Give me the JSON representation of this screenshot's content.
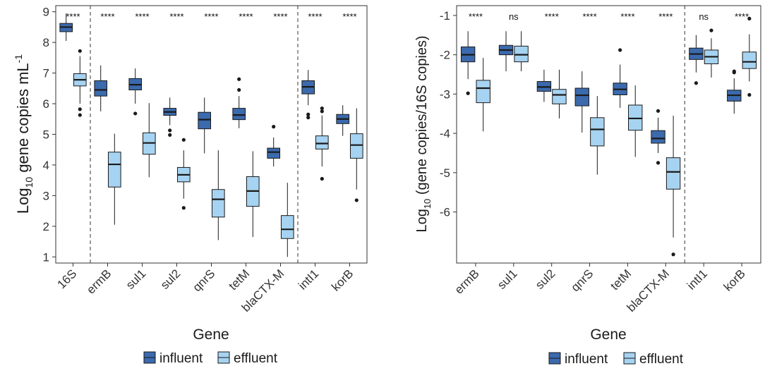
{
  "colors": {
    "influent": "#3b6aad",
    "effluent": "#a6d3f1",
    "stroke": "#1a1a1a"
  },
  "legend": {
    "items": [
      {
        "label": "influent",
        "color": "#3b6aad"
      },
      {
        "label": "effluent",
        "color": "#a6d3f1"
      }
    ]
  },
  "chart_data": [
    {
      "type": "box",
      "xlabel": "Gene",
      "ylabel_parts": [
        "Log",
        "10",
        " gene copies mL",
        "-1"
      ],
      "ylim": [
        0.8,
        9.2
      ],
      "yticks": [
        1,
        2,
        3,
        4,
        5,
        6,
        7,
        8,
        9
      ],
      "grid": false,
      "legend_position": "bottom",
      "separators_after": [
        0,
        6
      ],
      "categories": [
        "16S",
        "ermB",
        "sul1",
        "sul2",
        "qnrS",
        "tetM",
        "blaCTX-M",
        "intI1",
        "korB"
      ],
      "significance": [
        "****",
        "****",
        "****",
        "****",
        "****",
        "****",
        "****",
        "****",
        "****"
      ],
      "series": [
        {
          "name": "influent",
          "boxes": [
            {
              "min": 8.05,
              "q1": 8.35,
              "median": 8.5,
              "q3": 8.62,
              "max": 8.95,
              "outliers": []
            },
            {
              "min": 5.75,
              "q1": 6.25,
              "median": 6.45,
              "q3": 6.75,
              "max": 7.25,
              "outliers": []
            },
            {
              "min": 6.0,
              "q1": 6.45,
              "median": 6.62,
              "q3": 6.82,
              "max": 7.15,
              "outliers": [
                5.68
              ]
            },
            {
              "min": 5.3,
              "q1": 5.62,
              "median": 5.73,
              "q3": 5.85,
              "max": 6.2,
              "outliers": [
                5.13,
                4.98
              ]
            },
            {
              "min": 4.38,
              "q1": 5.18,
              "median": 5.48,
              "q3": 5.72,
              "max": 6.2,
              "outliers": []
            },
            {
              "min": 5.2,
              "q1": 5.48,
              "median": 5.63,
              "q3": 5.85,
              "max": 6.25,
              "outliers": [
                6.8,
                6.45
              ]
            },
            {
              "min": 3.95,
              "q1": 4.22,
              "median": 4.42,
              "q3": 4.55,
              "max": 4.9,
              "outliers": [
                5.25
              ]
            },
            {
              "min": 5.95,
              "q1": 6.32,
              "median": 6.55,
              "q3": 6.75,
              "max": 7.1,
              "outliers": [
                5.65,
                5.55
              ]
            },
            {
              "min": 4.95,
              "q1": 5.35,
              "median": 5.5,
              "q3": 5.65,
              "max": 5.95,
              "outliers": []
            }
          ]
        },
        {
          "name": "effluent",
          "boxes": [
            {
              "min": 6.0,
              "q1": 6.58,
              "median": 6.78,
              "q3": 6.98,
              "max": 7.55,
              "outliers": [
                7.72,
                5.82,
                5.63
              ]
            },
            {
              "min": 2.05,
              "q1": 3.28,
              "median": 4.02,
              "q3": 4.42,
              "max": 5.02,
              "outliers": []
            },
            {
              "min": 3.6,
              "q1": 4.35,
              "median": 4.72,
              "q3": 5.05,
              "max": 6.02,
              "outliers": []
            },
            {
              "min": 2.9,
              "q1": 3.45,
              "median": 3.68,
              "q3": 3.92,
              "max": 4.48,
              "outliers": [
                4.82,
                2.6
              ]
            },
            {
              "min": 1.55,
              "q1": 2.3,
              "median": 2.88,
              "q3": 3.2,
              "max": 4.48,
              "outliers": []
            },
            {
              "min": 1.65,
              "q1": 2.65,
              "median": 3.15,
              "q3": 3.62,
              "max": 4.45,
              "outliers": []
            },
            {
              "min": 1.0,
              "q1": 1.6,
              "median": 1.9,
              "q3": 2.35,
              "max": 3.42,
              "outliers": []
            },
            {
              "min": 3.95,
              "q1": 4.52,
              "median": 4.7,
              "q3": 4.95,
              "max": 5.62,
              "outliers": [
                5.85,
                5.75,
                3.55
              ]
            },
            {
              "min": 3.2,
              "q1": 4.22,
              "median": 4.65,
              "q3": 5.02,
              "max": 5.85,
              "outliers": [
                2.85
              ]
            }
          ]
        }
      ]
    },
    {
      "type": "box",
      "xlabel": "Gene",
      "ylabel_parts": [
        "Log",
        "10",
        " (gene copies/16S copies)",
        ""
      ],
      "ylim": [
        -7.3,
        -0.75
      ],
      "yticks": [
        -1,
        -2,
        -3,
        -4,
        -5,
        -6
      ],
      "grid": false,
      "legend_position": "bottom",
      "separators_after": [
        5
      ],
      "categories": [
        "ermB",
        "sul1",
        "sul2",
        "qnrS",
        "tetM",
        "blaCTX-M",
        "intI1",
        "korB"
      ],
      "significance": [
        "****",
        "ns",
        "****",
        "****",
        "****",
        "****",
        "ns",
        "****"
      ],
      "series": [
        {
          "name": "influent",
          "boxes": [
            {
              "min": -2.62,
              "q1": -2.18,
              "median": -2.0,
              "q3": -1.8,
              "max": -1.4,
              "outliers": [
                -2.98
              ]
            },
            {
              "min": -2.42,
              "q1": -2.0,
              "median": -1.88,
              "q3": -1.76,
              "max": -1.4,
              "outliers": []
            },
            {
              "min": -3.2,
              "q1": -2.93,
              "median": -2.82,
              "q3": -2.68,
              "max": -2.38,
              "outliers": []
            },
            {
              "min": -3.98,
              "q1": -3.3,
              "median": -3.03,
              "q3": -2.85,
              "max": -2.42,
              "outliers": []
            },
            {
              "min": -3.35,
              "q1": -3.02,
              "median": -2.88,
              "q3": -2.72,
              "max": -2.25,
              "outliers": [
                -1.88
              ]
            },
            {
              "min": -4.5,
              "q1": -4.25,
              "median": -4.13,
              "q3": -3.93,
              "max": -3.6,
              "outliers": [
                -3.43,
                -4.75
              ]
            },
            {
              "min": -2.45,
              "q1": -2.12,
              "median": -1.98,
              "q3": -1.83,
              "max": -1.5,
              "outliers": [
                -2.72
              ]
            },
            {
              "min": -3.5,
              "q1": -3.18,
              "median": -3.03,
              "q3": -2.9,
              "max": -2.6,
              "outliers": [
                -2.42,
                -2.45
              ]
            }
          ]
        },
        {
          "name": "effluent",
          "boxes": [
            {
              "min": -3.95,
              "q1": -3.22,
              "median": -2.85,
              "q3": -2.65,
              "max": -2.08,
              "outliers": []
            },
            {
              "min": -2.42,
              "q1": -2.18,
              "median": -2.0,
              "q3": -1.78,
              "max": -1.4,
              "outliers": []
            },
            {
              "min": -3.62,
              "q1": -3.25,
              "median": -3.02,
              "q3": -2.88,
              "max": -2.38,
              "outliers": []
            },
            {
              "min": -5.05,
              "q1": -4.32,
              "median": -3.9,
              "q3": -3.6,
              "max": -3.05,
              "outliers": []
            },
            {
              "min": -4.6,
              "q1": -3.92,
              "median": -3.62,
              "q3": -3.28,
              "max": -2.78,
              "outliers": []
            },
            {
              "min": -6.65,
              "q1": -5.42,
              "median": -4.98,
              "q3": -4.62,
              "max": -3.55,
              "outliers": [
                -7.08
              ]
            },
            {
              "min": -2.58,
              "q1": -2.23,
              "median": -2.05,
              "q3": -1.88,
              "max": -1.58,
              "outliers": [
                -1.38
              ]
            },
            {
              "min": -2.68,
              "q1": -2.35,
              "median": -2.18,
              "q3": -1.93,
              "max": -1.48,
              "outliers": [
                -1.08,
                -3.02
              ]
            }
          ]
        }
      ]
    }
  ]
}
